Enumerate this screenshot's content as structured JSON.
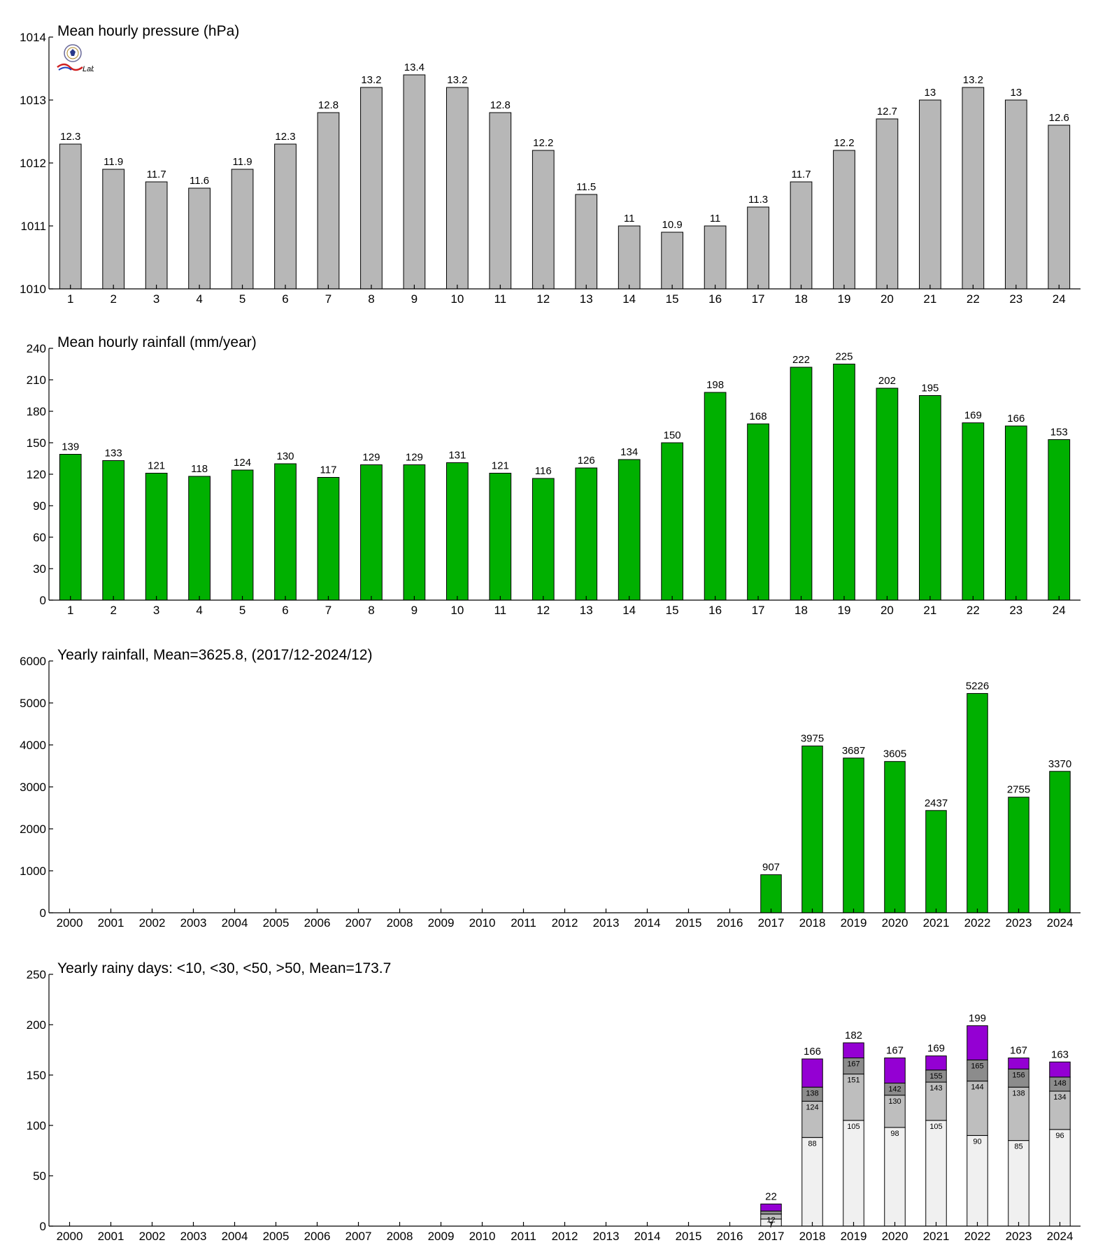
{
  "colors": {
    "pressure_bar": "#b7b7b7",
    "rain_bar": "#00b000",
    "rainy_lt10": "#f0f0f0",
    "rainy_lt30": "#bebebe",
    "rainy_lt50": "#8c8c8c",
    "rainy_gt50": "#9400d3"
  },
  "logo": {
    "icon": "station-lab-logo",
    "text": "Lab"
  },
  "chart_data": [
    {
      "type": "bar",
      "title": "Mean hourly pressure (hPa)",
      "categories": [
        "1",
        "2",
        "3",
        "4",
        "5",
        "6",
        "7",
        "8",
        "9",
        "10",
        "11",
        "12",
        "13",
        "14",
        "15",
        "16",
        "17",
        "18",
        "19",
        "20",
        "21",
        "22",
        "23",
        "24"
      ],
      "values": [
        1012.3,
        1011.9,
        1011.7,
        1011.6,
        1011.9,
        1012.3,
        1012.8,
        1013.2,
        1013.4,
        1013.2,
        1012.8,
        1012.2,
        1011.5,
        1011.0,
        1010.9,
        1011.0,
        1011.3,
        1011.7,
        1012.2,
        1012.7,
        1013.0,
        1013.2,
        1013.0,
        1012.6
      ],
      "value_labels": [
        "12.3",
        "11.9",
        "11.7",
        "11.6",
        "11.9",
        "12.3",
        "12.8",
        "13.2",
        "13.4",
        "13.2",
        "12.8",
        "12.2",
        "11.5",
        "11",
        "10.9",
        "11",
        "11.3",
        "11.7",
        "12.2",
        "12.7",
        "13",
        "13.2",
        "13",
        "12.6"
      ],
      "ylim": [
        1010,
        1014
      ],
      "yticks": [
        1010,
        1011,
        1012,
        1013,
        1014
      ],
      "grid": false,
      "color": "#b7b7b7"
    },
    {
      "type": "bar",
      "title": "Mean hourly rainfall (mm/year)",
      "categories": [
        "1",
        "2",
        "3",
        "4",
        "5",
        "6",
        "7",
        "8",
        "9",
        "10",
        "11",
        "12",
        "13",
        "14",
        "15",
        "16",
        "17",
        "18",
        "19",
        "20",
        "21",
        "22",
        "23",
        "24"
      ],
      "values": [
        139,
        133,
        121,
        118,
        124,
        130,
        117,
        129,
        129,
        131,
        121,
        116,
        126,
        134,
        150,
        198,
        168,
        222,
        225,
        202,
        195,
        169,
        166,
        153
      ],
      "value_labels": [
        "139",
        "133",
        "121",
        "118",
        "124",
        "130",
        "117",
        "129",
        "129",
        "131",
        "121",
        "116",
        "126",
        "134",
        "150",
        "198",
        "168",
        "222",
        "225",
        "202",
        "195",
        "169",
        "166",
        "153"
      ],
      "ylim": [
        0,
        240
      ],
      "yticks": [
        0,
        30,
        60,
        90,
        120,
        150,
        180,
        210,
        240
      ],
      "grid": false,
      "color": "#00b000"
    },
    {
      "type": "bar",
      "title": "Yearly rainfall, Mean=3625.8, (2017/12-2024/12)",
      "categories": [
        "2000",
        "2001",
        "2002",
        "2003",
        "2004",
        "2005",
        "2006",
        "2007",
        "2008",
        "2009",
        "2010",
        "2011",
        "2012",
        "2013",
        "2014",
        "2015",
        "2016",
        "2017",
        "2018",
        "2019",
        "2020",
        "2021",
        "2022",
        "2023",
        "2024"
      ],
      "values": [
        null,
        null,
        null,
        null,
        null,
        null,
        null,
        null,
        null,
        null,
        null,
        null,
        null,
        null,
        null,
        null,
        null,
        907,
        3975,
        3687,
        3605,
        2437,
        5226,
        2755,
        3370
      ],
      "value_labels": [
        "",
        "",
        "",
        "",
        "",
        "",
        "",
        "",
        "",
        "",
        "",
        "",
        "",
        "",
        "",
        "",
        "",
        "907",
        "3975",
        "3687",
        "3605",
        "2437",
        "5226",
        "2755",
        "3370"
      ],
      "ylim": [
        0,
        6000
      ],
      "yticks": [
        0,
        1000,
        2000,
        3000,
        4000,
        5000,
        6000
      ],
      "grid": false,
      "color": "#00b000"
    },
    {
      "type": "bar",
      "stacked": true,
      "title": "Yearly rainy days: <10, <30, <50, >50, Mean=173.7",
      "categories": [
        "2000",
        "2001",
        "2002",
        "2003",
        "2004",
        "2005",
        "2006",
        "2007",
        "2008",
        "2009",
        "2010",
        "2011",
        "2012",
        "2013",
        "2014",
        "2015",
        "2016",
        "2017",
        "2018",
        "2019",
        "2020",
        "2021",
        "2022",
        "2023",
        "2024"
      ],
      "cumulative": [
        null,
        null,
        null,
        null,
        null,
        null,
        null,
        null,
        null,
        null,
        null,
        null,
        null,
        null,
        null,
        null,
        null,
        [
          7,
          12,
          15,
          22
        ],
        [
          88,
          124,
          138,
          166
        ],
        [
          105,
          151,
          167,
          182
        ],
        [
          98,
          130,
          142,
          167
        ],
        [
          105,
          143,
          155,
          169
        ],
        [
          90,
          144,
          165,
          199
        ],
        [
          85,
          138,
          156,
          167
        ],
        [
          96,
          134,
          148,
          163
        ]
      ],
      "segment_labels": [
        null,
        null,
        null,
        null,
        null,
        null,
        null,
        null,
        null,
        null,
        null,
        null,
        null,
        null,
        null,
        null,
        null,
        [
          "7",
          "12",
          "",
          ""
        ],
        [
          "88",
          "124",
          "138",
          ""
        ],
        [
          "105",
          "151",
          "167",
          ""
        ],
        [
          "98",
          "130",
          "142",
          ""
        ],
        [
          "105",
          "143",
          "155",
          ""
        ],
        [
          "90",
          "144",
          "165",
          ""
        ],
        [
          "85",
          "138",
          "156",
          ""
        ],
        [
          "96",
          "134",
          "148",
          ""
        ]
      ],
      "total_labels": [
        "",
        "",
        "",
        "",
        "",
        "",
        "",
        "",
        "",
        "",
        "",
        "",
        "",
        "",
        "",
        "",
        "",
        "22",
        "166",
        "182",
        "167",
        "169",
        "199",
        "167",
        "163"
      ],
      "ylim": [
        0,
        250
      ],
      "yticks": [
        0,
        50,
        100,
        150,
        200,
        250
      ],
      "grid": false,
      "segment_colors": [
        "#f0f0f0",
        "#bebebe",
        "#8c8c8c",
        "#9400d3"
      ]
    }
  ]
}
